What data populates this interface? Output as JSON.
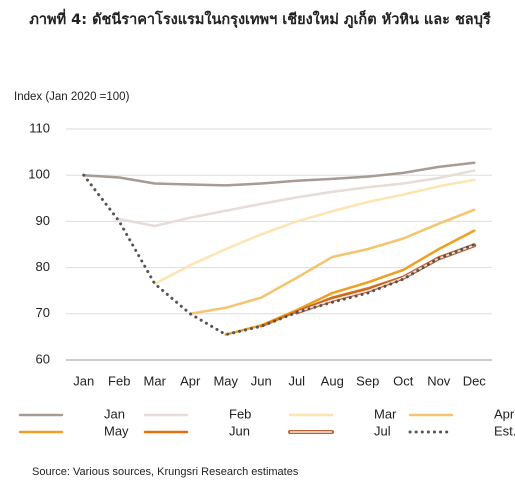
{
  "chart_data": {
    "type": "line",
    "title": "ภาพที่ 4: ดัชนีราคาโรงแรมในกรุงเทพฯ เชียงใหม่ ภูเก็ต หัวหิน และ ชลบุรี",
    "y_label": "Index (Jan 2020 =100)",
    "source": "Source: Various sources, Krungsri Research estimates",
    "categories": [
      "Jan",
      "Feb",
      "Mar",
      "Apr",
      "May",
      "Jun",
      "Jul",
      "Aug",
      "Sep",
      "Oct",
      "Nov",
      "Dec"
    ],
    "ylim": [
      60,
      110
    ],
    "yticks": [
      60,
      70,
      80,
      90,
      100,
      110
    ],
    "grid": true,
    "legend": "bottom",
    "series": [
      {
        "name": "Jan",
        "color": "#a89a94",
        "values": [
          100,
          99.5,
          98.2,
          98,
          97.8,
          98.2,
          98.8,
          99.2,
          99.7,
          100.5,
          101.8,
          102.7
        ]
      },
      {
        "name": "Feb",
        "color": "#e8dbd8",
        "values": [
          null,
          90.5,
          89,
          90.8,
          92.3,
          93.8,
          95.2,
          96.4,
          97.4,
          98.2,
          99.4,
          101
        ]
      },
      {
        "name": "Mar",
        "color": "#fde4b2",
        "values": [
          null,
          null,
          76.5,
          80.5,
          84,
          87.2,
          90,
          92.2,
          94.2,
          95.8,
          97.6,
          99
        ]
      },
      {
        "name": "Apr",
        "color": "#f5c46e",
        "values": [
          null,
          null,
          null,
          70,
          71.3,
          73.5,
          77.8,
          82.3,
          84,
          86.3,
          89.5,
          92.5
        ]
      },
      {
        "name": "May",
        "color": "#f0a020",
        "values": [
          null,
          null,
          null,
          null,
          65.5,
          67.5,
          70.8,
          74.5,
          76.8,
          79.5,
          84,
          88
        ]
      },
      {
        "name": "Jun",
        "color": "#e07010",
        "values": [
          null,
          null,
          null,
          null,
          null,
          67.3,
          70.5,
          73.5,
          75.5,
          78,
          82.2,
          85
        ]
      },
      {
        "name": "Jul",
        "color": "#b8643a",
        "inner_color": "#fbe3cc",
        "values": [
          null,
          null,
          null,
          null,
          null,
          null,
          70.3,
          73,
          75,
          77.8,
          82,
          84.8
        ]
      },
      {
        "name": "Est.",
        "color": "#555555",
        "dotted": true,
        "values": [
          100,
          90,
          76.5,
          70,
          65.5,
          67.3,
          70.3,
          72.5,
          74.5,
          77.5,
          82,
          85
        ]
      }
    ]
  }
}
